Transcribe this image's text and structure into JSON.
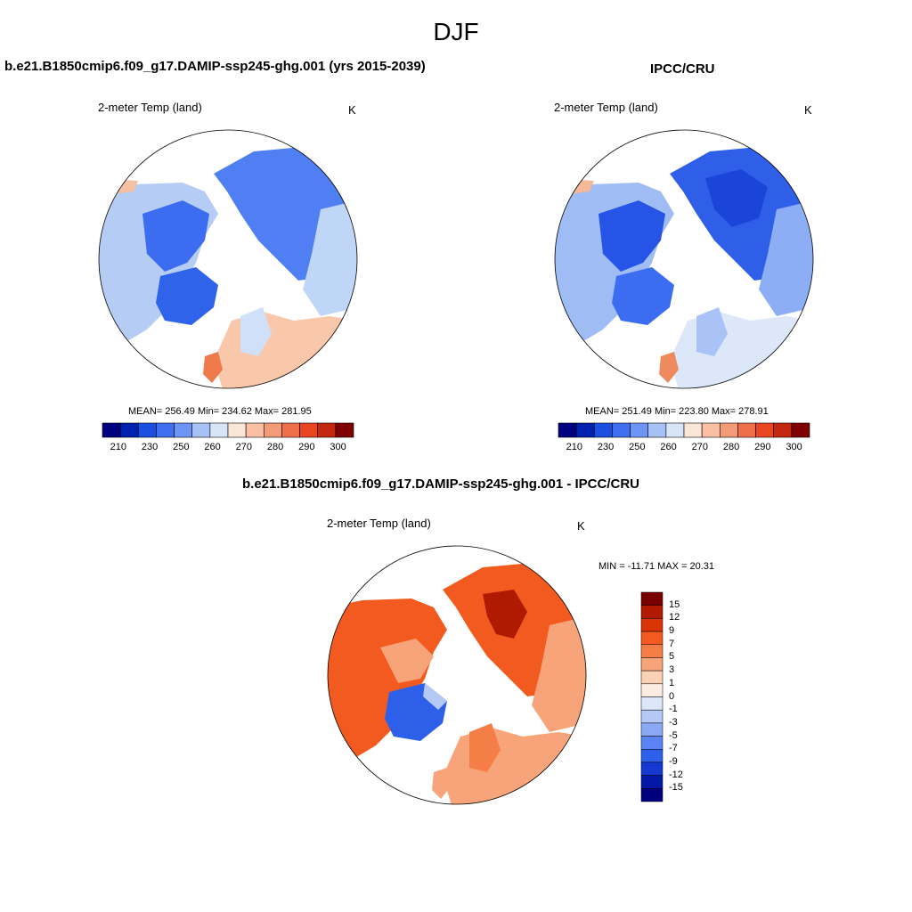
{
  "page_title": "DJF",
  "panels": {
    "left": {
      "title": "b.e21.B1850cmip6.f09_g17.DAMIP-ssp245-ghg.001 (yrs 2015-2039)",
      "variable": "2-meter Temp (land)",
      "units": "K",
      "stats": "MEAN= 256.49  Min= 234.62  Max= 281.95"
    },
    "right": {
      "title": "IPCC/CRU",
      "variable": "2-meter Temp (land)",
      "units": "K",
      "stats": "MEAN= 251.49  Min= 223.80  Max= 278.91"
    },
    "diff": {
      "title": "b.e21.B1850cmip6.f09_g17.DAMIP-ssp245-ghg.001 - IPCC/CRU",
      "variable": "2-meter Temp (land)",
      "units": "K",
      "stats": "MIN = -11.71 MAX =  20.31"
    }
  },
  "colorbar_abs": {
    "colors": [
      "#00007f",
      "#0020b0",
      "#1a4fe0",
      "#3f6ff0",
      "#6e95f5",
      "#a8c1f5",
      "#d6e5f8",
      "#fce6d6",
      "#f9c0a3",
      "#f39a78",
      "#ef6f48",
      "#e84520",
      "#c4260f",
      "#7f0000"
    ],
    "labels": [
      "210",
      "230",
      "250",
      "260",
      "270",
      "280",
      "290",
      "300"
    ]
  },
  "colorbar_diff": {
    "colors": [
      "#7a0000",
      "#b01a00",
      "#d83406",
      "#f25a1f",
      "#f57e47",
      "#f8a47a",
      "#fbd1b4",
      "#fcebe0",
      "#dce8fa",
      "#b5c9f6",
      "#8aa8f4",
      "#5b83f2",
      "#2e5fe8",
      "#1438d0",
      "#0418a6",
      "#00007f"
    ],
    "labels": [
      "15",
      "12",
      "9",
      "7",
      "5",
      "3",
      "1",
      "0",
      "-1",
      "-3",
      "-5",
      "-7",
      "-9",
      "-12",
      "-15"
    ]
  }
}
